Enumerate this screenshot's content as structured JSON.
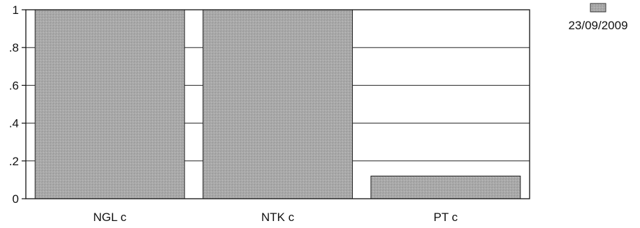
{
  "chart_data": {
    "type": "bar",
    "categories": [
      "NGL c",
      "NTK c",
      "PT c"
    ],
    "series": [
      {
        "name": "23/09/2009",
        "values": [
          1,
          1,
          0.12
        ]
      }
    ],
    "ylim": [
      0,
      1
    ],
    "yticks": [
      0,
      0.2,
      0.4,
      0.6,
      0.8,
      1
    ],
    "ytick_labels": [
      "0",
      ".2",
      ".4",
      ".6",
      ".8",
      "1"
    ],
    "xlabel": "",
    "ylabel": "",
    "grid": true,
    "legend": "top-right",
    "bar_color": "#a9a9a9"
  }
}
